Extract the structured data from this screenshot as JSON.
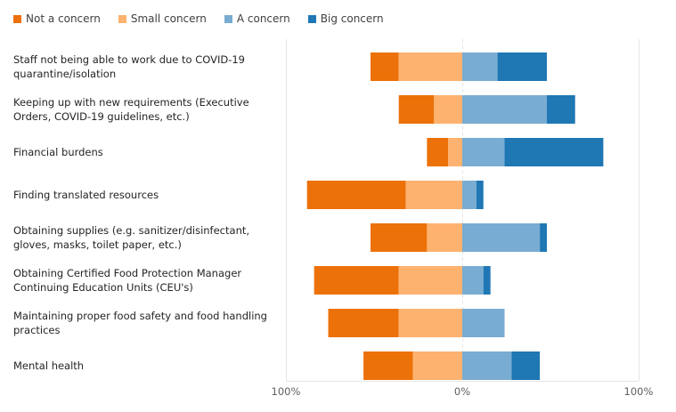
{
  "chart_data": {
    "type": "bar",
    "orientation": "horizontal",
    "stacked": "diverging",
    "title": "",
    "xlabel": "",
    "ylabel": "",
    "xlim": [
      -100,
      100
    ],
    "x_tick_labels": [
      "100%",
      "0%",
      "100%"
    ],
    "legend_position": "top-left",
    "categories": [
      "Staff not being able to work due to COVID-19 quarantine/isolation",
      "Keeping up with new requirements (Executive Orders, COVID-19 guidelines, etc.)",
      "Financial burdens",
      "Finding translated resources",
      "Obtaining supplies (e.g. sanitizer/disinfectant, gloves, masks, toilet paper, etc.)",
      "Obtaining Certified Food Protection Manager Continuing Education Units (CEU's)",
      "Maintaining proper food safety and food handling practices",
      "Mental health"
    ],
    "series": [
      {
        "name": "Not a concern",
        "side": "negative",
        "color": "#ec7108",
        "values": [
          16,
          20,
          12,
          56,
          32,
          48,
          40,
          28
        ]
      },
      {
        "name": "Small concern",
        "side": "negative",
        "color": "#feb26f",
        "values": [
          36,
          16,
          8,
          32,
          20,
          36,
          36,
          28
        ]
      },
      {
        "name": "A concern",
        "side": "positive",
        "color": "#79acd2",
        "values": [
          20,
          48,
          24,
          8,
          44,
          12,
          24,
          28
        ]
      },
      {
        "name": "Big concern",
        "side": "positive",
        "color": "#1f77b4",
        "values": [
          28,
          16,
          56,
          4,
          4,
          4,
          0,
          16
        ]
      }
    ]
  }
}
